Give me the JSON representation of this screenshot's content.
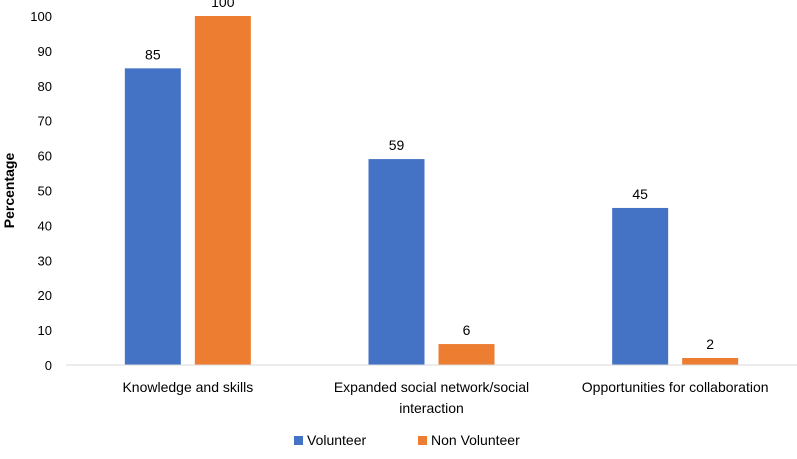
{
  "chart_data": {
    "type": "bar",
    "title": "",
    "xlabel": "",
    "ylabel": "Percentage",
    "ylim": [
      0,
      100
    ],
    "yticks": [
      0,
      10,
      20,
      30,
      40,
      50,
      60,
      70,
      80,
      90,
      100
    ],
    "grid": false,
    "legend_position": "bottom",
    "categories": [
      [
        "Knowledge and skills"
      ],
      [
        "Expanded social network/social",
        "interaction"
      ],
      [
        "Opportunities for collaboration"
      ]
    ],
    "series": [
      {
        "name": "Volunteer",
        "color": "#4472C4",
        "values": [
          85,
          59,
          45
        ]
      },
      {
        "name": "Non Volunteer",
        "color": "#ED7D31",
        "values": [
          100,
          6,
          2
        ]
      }
    ]
  }
}
